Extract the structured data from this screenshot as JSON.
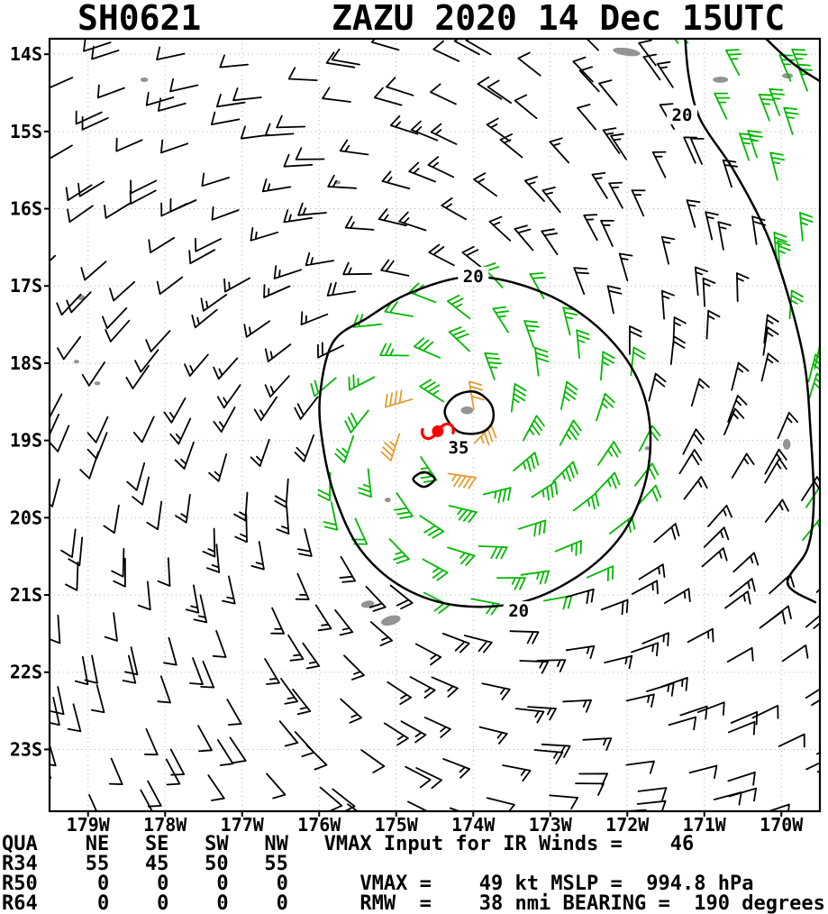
{
  "title": {
    "storm_id": "SH0621",
    "header": "ZAZU 2020 14 Dec 15UTC"
  },
  "chart_data": {
    "type": "wind_barb_map",
    "title": "SH0621 ZAZU 2020 14 Dec 15UTC",
    "lon_range": [
      -179.5,
      -169.5
    ],
    "lat_range": [
      -23.8,
      -13.8
    ],
    "lon_ticks": [
      "179W",
      "178W",
      "177W",
      "176W",
      "175W",
      "174W",
      "173W",
      "172W",
      "171W",
      "170W"
    ],
    "lat_ticks": [
      "14S",
      "15S",
      "16S",
      "17S",
      "18S",
      "19S",
      "20S",
      "21S",
      "22S",
      "23S"
    ],
    "grid": "dotted",
    "storm": {
      "name": "ZAZU",
      "id": "SH0621",
      "datetime": "2020 14 Dec 15UTC",
      "center_lon": -174.46,
      "center_lat": -18.88,
      "vmax_kt": 49,
      "mslp_hpa": 994.8,
      "rmw_nmi": 38,
      "bearing_deg": 190,
      "vmax_input_ir_kt": 46
    },
    "quadrant_table": {
      "quadrants": [
        "NE",
        "SE",
        "SW",
        "NW"
      ],
      "R34": [
        55,
        45,
        50,
        55
      ],
      "R50": [
        0,
        0,
        0,
        0
      ],
      "R64": [
        0,
        0,
        0,
        0
      ]
    },
    "colors": {
      "calm": "#000000",
      "gale": "#00b800",
      "storm": "#e39b2d",
      "center": "#ff0000",
      "land": "#949494",
      "contour": "#000000",
      "grid": "#b0b0b0"
    },
    "isotachs": [
      {
        "value": "20",
        "closed": true,
        "points": [
          [
            -175.99,
            -18.43
          ],
          [
            -175.82,
            -17.73
          ],
          [
            -175.37,
            -17.41
          ],
          [
            -174.82,
            -17.09
          ],
          [
            -174.06,
            -16.88
          ],
          [
            -173.3,
            -17.01
          ],
          [
            -172.6,
            -17.36
          ],
          [
            -172.07,
            -17.87
          ],
          [
            -171.78,
            -18.43
          ],
          [
            -171.7,
            -19.07
          ],
          [
            -171.82,
            -19.72
          ],
          [
            -172.13,
            -20.3
          ],
          [
            -172.66,
            -20.77
          ],
          [
            -173.36,
            -21.09
          ],
          [
            -174.18,
            -21.14
          ],
          [
            -174.9,
            -20.91
          ],
          [
            -175.46,
            -20.42
          ],
          [
            -175.79,
            -19.74
          ],
          [
            -175.95,
            -19.07
          ]
        ],
        "labels": [
          [
            -174.0,
            -16.88
          ],
          [
            -173.41,
            -21.21
          ]
        ]
      },
      {
        "value": "35",
        "closed": true,
        "points": [
          [
            -174.37,
            -18.64
          ],
          [
            -174.24,
            -18.43
          ],
          [
            -173.98,
            -18.37
          ],
          [
            -173.77,
            -18.53
          ],
          [
            -173.75,
            -18.76
          ],
          [
            -173.91,
            -18.9
          ],
          [
            -174.2,
            -18.88
          ]
        ],
        "labels": [
          [
            -174.19,
            -19.1
          ]
        ]
      },
      {
        "value": "",
        "closed": true,
        "points": [
          [
            -174.78,
            -19.5
          ],
          [
            -174.64,
            -19.41
          ],
          [
            -174.5,
            -19.5
          ],
          [
            -174.64,
            -19.6
          ]
        ],
        "labels": []
      },
      {
        "value": "20",
        "closed": false,
        "points": [
          [
            -171.25,
            -13.78
          ],
          [
            -171.2,
            -14.3
          ],
          [
            -171.05,
            -14.85
          ],
          [
            -170.62,
            -15.5
          ],
          [
            -170.2,
            -16.3
          ],
          [
            -169.92,
            -17.1
          ],
          [
            -169.7,
            -18.0
          ],
          [
            -169.62,
            -18.9
          ],
          [
            -169.58,
            -19.8
          ],
          [
            -169.66,
            -20.4
          ],
          [
            -169.92,
            -20.85
          ],
          [
            -169.55,
            -21.1
          ]
        ],
        "labels": [
          [
            -171.29,
            -14.79
          ]
        ]
      },
      {
        "value": "",
        "closed": false,
        "points": [
          [
            -170.2,
            -13.8
          ],
          [
            -169.85,
            -14.12
          ],
          [
            -169.45,
            -14.38
          ]
        ],
        "labels": []
      }
    ],
    "islands": [
      {
        "lon": -174.08,
        "lat": -18.61,
        "w": 0.16,
        "h": 0.1,
        "rot": 0
      },
      {
        "lon": -175.11,
        "lat": -19.77,
        "w": 0.08,
        "h": 0.06,
        "rot": 0
      },
      {
        "lon": -175.37,
        "lat": -21.12,
        "w": 0.17,
        "h": 0.09,
        "rot": -10
      },
      {
        "lon": -175.07,
        "lat": -21.33,
        "w": 0.26,
        "h": 0.12,
        "rot": -15
      },
      {
        "lon": -172.01,
        "lat": -13.97,
        "w": 0.36,
        "h": 0.1,
        "rot": 8
      },
      {
        "lon": -170.79,
        "lat": -14.33,
        "w": 0.2,
        "h": 0.08,
        "rot": 0
      },
      {
        "lon": -169.92,
        "lat": -14.28,
        "w": 0.14,
        "h": 0.07,
        "rot": 0
      },
      {
        "lon": -178.27,
        "lat": -14.33,
        "w": 0.1,
        "h": 0.06,
        "rot": 0
      },
      {
        "lon": -179.09,
        "lat": -17.15,
        "w": 0.1,
        "h": 0.07,
        "rot": 0
      },
      {
        "lon": -179.15,
        "lat": -17.98,
        "w": 0.07,
        "h": 0.05,
        "rot": 0
      },
      {
        "lon": -178.88,
        "lat": -18.26,
        "w": 0.08,
        "h": 0.05,
        "rot": 0
      },
      {
        "lon": -175.76,
        "lat": -15.66,
        "w": 0.08,
        "h": 0.05,
        "rot": 0
      },
      {
        "lon": -169.93,
        "lat": -19.05,
        "w": 0.1,
        "h": 0.14,
        "rot": 0
      },
      {
        "lon": -171.74,
        "lat": -19.1,
        "w": 0.07,
        "h": 0.05,
        "rot": 0
      }
    ],
    "barb_field": {
      "inflow_deg": 22,
      "ring_start_deg": 0.48,
      "ring_step_deg": 0.55,
      "ring_count": 14,
      "along_spacing_deg": 0.44,
      "twist_per_ring_rad": 0.29,
      "rmw_deg": 0.63,
      "inner_rise_exp": 1.2,
      "inner_decay_exp": 1.4,
      "outer_center": [
        -173.85,
        -19.05
      ],
      "outer_decay_exp": 0.72,
      "outer_cap_kt": 33,
      "corner_speed_kt": 25,
      "corner_falloff_kt_per_deg": 40,
      "corner_line": [
        [
          -13.8,
          -171.25
        ],
        [
          -14.4,
          -171.18
        ],
        [
          -14.85,
          -171.05
        ],
        [
          -15.5,
          -170.62
        ],
        [
          -16.3,
          -170.2
        ],
        [
          -17.1,
          -169.92
        ],
        [
          -18.0,
          -169.7
        ],
        [
          -18.9,
          -169.62
        ],
        [
          -19.8,
          -169.58
        ],
        [
          -20.5,
          -169.62
        ]
      ]
    }
  },
  "table": {
    "lines": [
      "QUA    NE   SE   SW   NW   VMAX Input for IR Winds =    46",
      "R34    55   45   50   55",
      "R50     0    0    0    0      VMAX =    49 kt MSLP =  994.8 hPa",
      "R64     0    0    0    0      RMW  =    38 nmi BEARING =  190 degrees"
    ]
  }
}
